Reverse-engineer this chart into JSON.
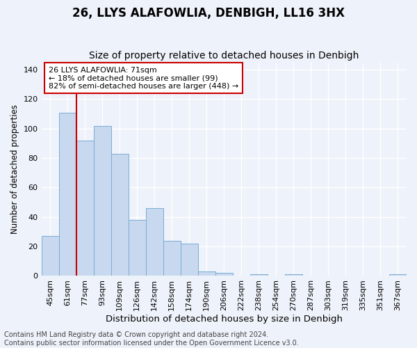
{
  "title": "26, LLYS ALAFOWLIA, DENBIGH, LL16 3HX",
  "subtitle": "Size of property relative to detached houses in Denbigh",
  "xlabel": "Distribution of detached houses by size in Denbigh",
  "ylabel": "Number of detached properties",
  "categories": [
    "45sqm",
    "61sqm",
    "77sqm",
    "93sqm",
    "109sqm",
    "126sqm",
    "142sqm",
    "158sqm",
    "174sqm",
    "190sqm",
    "206sqm",
    "222sqm",
    "238sqm",
    "254sqm",
    "270sqm",
    "287sqm",
    "303sqm",
    "319sqm",
    "335sqm",
    "351sqm",
    "367sqm"
  ],
  "values": [
    27,
    111,
    92,
    102,
    83,
    38,
    46,
    24,
    22,
    3,
    2,
    0,
    1,
    0,
    1,
    0,
    0,
    0,
    0,
    0,
    1
  ],
  "bar_color": "#c8d8ef",
  "bar_edge_color": "#7aadd4",
  "vline_x": 1.5,
  "vline_color": "#cc0000",
  "ylim": [
    0,
    145
  ],
  "yticks": [
    0,
    20,
    40,
    60,
    80,
    100,
    120,
    140
  ],
  "annotation_line1": "26 LLYS ALAFOWLIA: 71sqm",
  "annotation_line2": "← 18% of detached houses are smaller (99)",
  "annotation_line3": "82% of semi-detached houses are larger (448) →",
  "annotation_box_color": "#ffffff",
  "annotation_box_edge": "#cc0000",
  "footer_text": "Contains HM Land Registry data © Crown copyright and database right 2024.\nContains public sector information licensed under the Open Government Licence v3.0.",
  "background_color": "#eef2fa",
  "grid_color": "#ffffff",
  "title_fontsize": 12,
  "subtitle_fontsize": 10,
  "xlabel_fontsize": 9.5,
  "ylabel_fontsize": 8.5,
  "tick_fontsize": 8,
  "annotation_fontsize": 8,
  "footer_fontsize": 7
}
